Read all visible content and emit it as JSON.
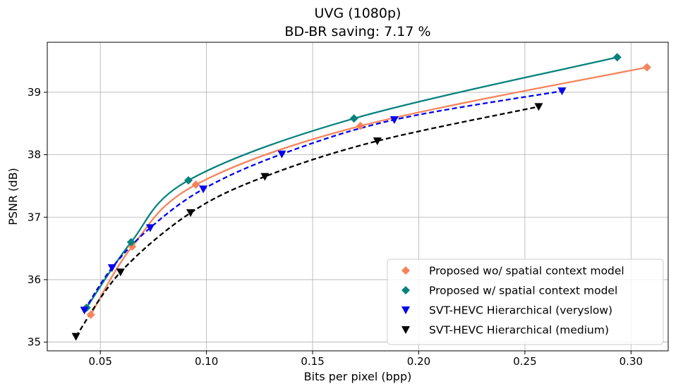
{
  "chart_data": {
    "type": "line",
    "title_line1": "UVG (1080p)",
    "title_line2": "BD-BR saving: 7.17 %",
    "xlabel": "Bits per pixel (bpp)",
    "ylabel": "PSNR (dB)",
    "xlim": [
      0.025,
      0.3175
    ],
    "ylim": [
      34.86,
      39.8
    ],
    "xticks": [
      0.05,
      0.1,
      0.15,
      0.2,
      0.25,
      0.3
    ],
    "xtick_labels": [
      "0.05",
      "0.10",
      "0.15",
      "0.20",
      "0.25",
      "0.30"
    ],
    "yticks": [
      35,
      36,
      37,
      38,
      39
    ],
    "ytick_labels": [
      "35",
      "36",
      "37",
      "38",
      "39"
    ],
    "grid": true,
    "legend_position": "lower-right",
    "series": [
      {
        "name": "Proposed wo/ spatial context model",
        "color": "#f5845c",
        "marker": "diamond",
        "line_style": "solid",
        "points": [
          [
            0.0455,
            35.44
          ],
          [
            0.065,
            36.53
          ],
          [
            0.095,
            37.52
          ],
          [
            0.1725,
            38.46
          ],
          [
            0.3075,
            39.4
          ]
        ]
      },
      {
        "name": "Proposed w/ spatial context model",
        "color": "#06827e",
        "marker": "diamond",
        "line_style": "solid",
        "points": [
          [
            0.0435,
            35.55
          ],
          [
            0.0645,
            36.6
          ],
          [
            0.0915,
            37.59
          ],
          [
            0.1695,
            38.58
          ],
          [
            0.2935,
            39.56
          ]
        ]
      },
      {
        "name": "SVT-HEVC Hierarchical (veryslow)",
        "color": "#0000ee",
        "marker": "triangle-down",
        "line_style": "dashed",
        "points": [
          [
            0.0425,
            35.51
          ],
          [
            0.0555,
            36.19
          ],
          [
            0.0735,
            36.83
          ],
          [
            0.0985,
            37.45
          ],
          [
            0.1355,
            38.01
          ],
          [
            0.1885,
            38.56
          ],
          [
            0.2675,
            39.02
          ]
        ]
      },
      {
        "name": "SVT-HEVC Hierarchical (medium)",
        "color": "#000000",
        "marker": "triangle-down",
        "line_style": "dashed",
        "points": [
          [
            0.0385,
            35.09
          ],
          [
            0.0595,
            36.12
          ],
          [
            0.0925,
            37.07
          ],
          [
            0.1275,
            37.65
          ],
          [
            0.1805,
            38.22
          ],
          [
            0.2565,
            38.77
          ]
        ]
      }
    ]
  }
}
